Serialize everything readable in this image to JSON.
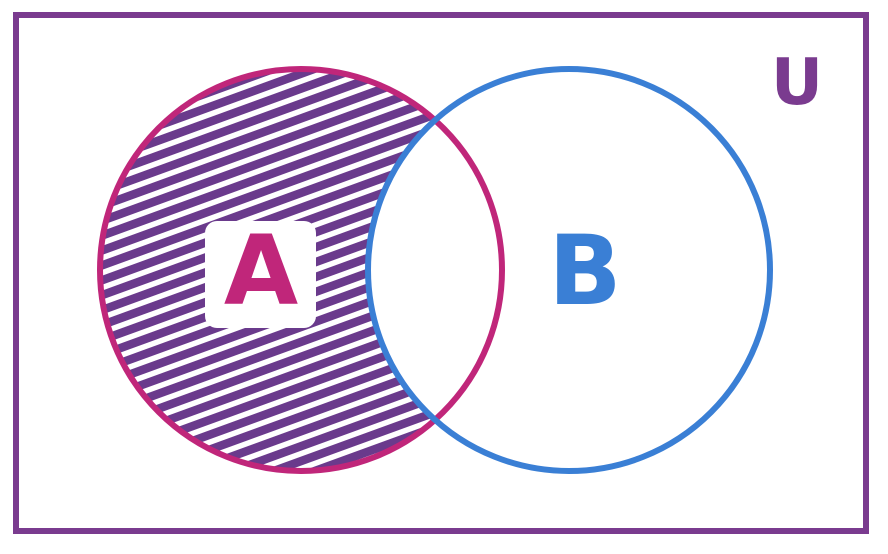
{
  "diagram": {
    "universe": {
      "label": "U"
    },
    "sets": [
      {
        "id": "A",
        "label": "A"
      },
      {
        "id": "B",
        "label": "B"
      }
    ],
    "shaded_region": "A minus B",
    "colors": {
      "universe": "#7a3b8f",
      "set_a": "#c0267a",
      "set_b": "#3a7fd5",
      "hatch": "#6a3a8c",
      "label_box": "#ffffff"
    }
  }
}
